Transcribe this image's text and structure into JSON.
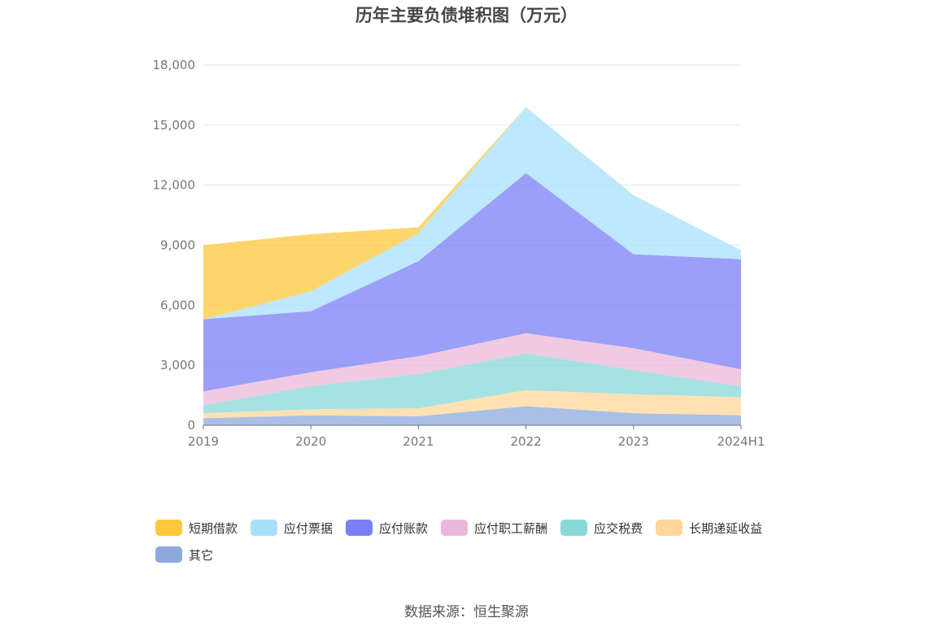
{
  "chart_data": {
    "type": "area",
    "title": "历年主要负债堆积图（万元）",
    "categories": [
      "2019",
      "2020",
      "2021",
      "2022",
      "2023",
      "2024H1"
    ],
    "ylim": [
      0,
      18000
    ],
    "yticks": [
      0,
      3000,
      6000,
      9000,
      12000,
      15000,
      18000
    ],
    "ytick_labels": [
      "0",
      "3,000",
      "6,000",
      "9,000",
      "12,000",
      "15,000",
      "18,000"
    ],
    "stacked": true,
    "grid": true,
    "legend_position": "bottom",
    "series": [
      {
        "name": "其它",
        "color": "#8eaadc",
        "values": [
          350,
          500,
          450,
          950,
          600,
          500
        ]
      },
      {
        "name": "长期递延收益",
        "color": "#ffd799",
        "values": [
          250,
          300,
          400,
          800,
          950,
          900
        ]
      },
      {
        "name": "应交税费",
        "color": "#88d8d8",
        "values": [
          400,
          1150,
          1700,
          1850,
          1200,
          550
        ]
      },
      {
        "name": "应付职工薪酬",
        "color": "#ebb8da",
        "values": [
          700,
          700,
          900,
          1000,
          1100,
          850
        ]
      },
      {
        "name": "应付账款",
        "color": "#7b7ff5",
        "values": [
          3600,
          3050,
          4750,
          8000,
          4700,
          5500
        ]
      },
      {
        "name": "应付票据",
        "color": "#a8e0fb",
        "values": [
          0,
          1000,
          1400,
          3300,
          2950,
          450
        ]
      },
      {
        "name": "短期借款",
        "color": "#ffc83d",
        "values": [
          3700,
          2850,
          300,
          0,
          0,
          0
        ]
      }
    ]
  },
  "legend_order": [
    6,
    5,
    4,
    3,
    2,
    1,
    0
  ],
  "source_text": "数据来源：恒生聚源"
}
